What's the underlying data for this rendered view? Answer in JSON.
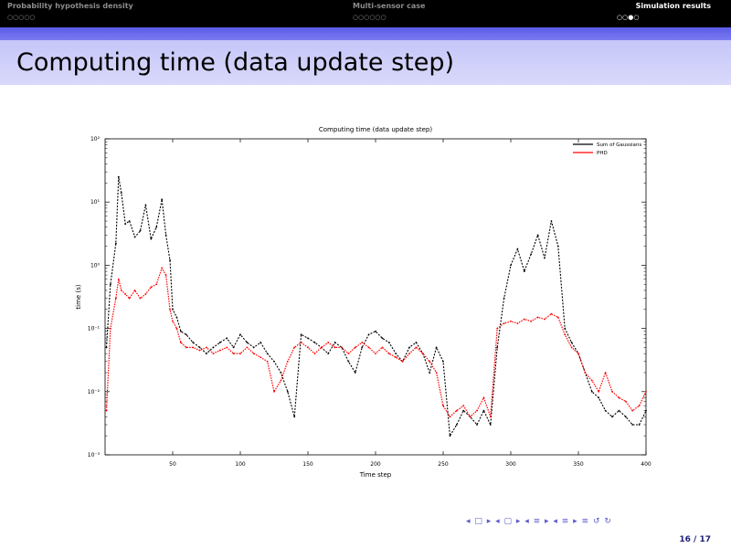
{
  "header": {
    "sections": [
      {
        "title": "Probability hypothesis density",
        "dots": "○○○○○",
        "active": false
      },
      {
        "title": "Multi-sensor case",
        "dots": "○○○○○○",
        "active": false
      },
      {
        "title": "Simulation results",
        "dots": "○○●○",
        "active": true
      }
    ]
  },
  "frame": {
    "title": "Computing time (data update step)"
  },
  "footer": {
    "nav_symbols": "◂ □ ▸ ◂ ▢ ▸ ◂ ≡ ▸ ◂ ≡ ▸   ≡   ↺ ↻",
    "page": "16 / 17"
  },
  "chart_data": {
    "type": "line",
    "title": "Computing time (data update step)",
    "xlabel": "Time step",
    "ylabel": "time (s)",
    "xlim": [
      0,
      400
    ],
    "yscale": "log",
    "ylim": [
      0.001,
      100
    ],
    "x_ticks": [
      "50",
      "100",
      "150",
      "200",
      "250",
      "300",
      "350",
      "400"
    ],
    "y_ticks": [
      "10⁻³",
      "10⁻²",
      "10⁻¹",
      "10⁰",
      "10¹",
      "10²"
    ],
    "legend_position": "top-right",
    "colors": {
      "series1": "#000000",
      "series2": "#ff0000"
    },
    "series": [
      {
        "name": "Sum of Gaussians",
        "x": [
          1,
          4,
          8,
          10,
          12,
          15,
          18,
          22,
          26,
          30,
          34,
          38,
          42,
          45,
          48,
          50,
          53,
          56,
          60,
          65,
          70,
          75,
          80,
          85,
          90,
          95,
          100,
          105,
          110,
          115,
          120,
          125,
          130,
          135,
          140,
          145,
          150,
          155,
          160,
          165,
          170,
          175,
          180,
          185,
          190,
          195,
          200,
          205,
          210,
          215,
          220,
          225,
          230,
          235,
          240,
          245,
          250,
          255,
          260,
          265,
          270,
          275,
          280,
          285,
          290,
          295,
          300,
          305,
          310,
          315,
          320,
          325,
          330,
          335,
          340,
          345,
          350,
          355,
          360,
          365,
          370,
          375,
          380,
          385,
          390,
          395,
          400
        ],
        "values": [
          0.05,
          0.5,
          2.2,
          25,
          14,
          4.5,
          5,
          2.8,
          3.5,
          9,
          2.6,
          4,
          11,
          3,
          1.2,
          0.2,
          0.15,
          0.09,
          0.08,
          0.06,
          0.05,
          0.04,
          0.05,
          0.06,
          0.07,
          0.05,
          0.08,
          0.06,
          0.05,
          0.06,
          0.04,
          0.03,
          0.02,
          0.01,
          0.004,
          0.08,
          0.07,
          0.06,
          0.05,
          0.04,
          0.06,
          0.05,
          0.03,
          0.02,
          0.05,
          0.08,
          0.09,
          0.07,
          0.06,
          0.04,
          0.03,
          0.05,
          0.06,
          0.04,
          0.02,
          0.05,
          0.03,
          0.002,
          0.003,
          0.005,
          0.004,
          0.003,
          0.005,
          0.003,
          0.05,
          0.3,
          1,
          1.8,
          0.8,
          1.5,
          3,
          1.3,
          5,
          2,
          0.1,
          0.06,
          0.04,
          0.02,
          0.01,
          0.008,
          0.005,
          0.004,
          0.005,
          0.004,
          0.003,
          0.003,
          0.005
        ]
      },
      {
        "name": "PHD",
        "x": [
          1,
          4,
          8,
          10,
          12,
          15,
          18,
          22,
          26,
          30,
          34,
          38,
          42,
          45,
          48,
          50,
          53,
          56,
          60,
          65,
          70,
          75,
          80,
          85,
          90,
          95,
          100,
          105,
          110,
          115,
          120,
          125,
          130,
          135,
          140,
          145,
          150,
          155,
          160,
          165,
          170,
          175,
          180,
          185,
          190,
          195,
          200,
          205,
          210,
          215,
          220,
          225,
          230,
          235,
          240,
          245,
          250,
          255,
          260,
          265,
          270,
          275,
          280,
          285,
          290,
          295,
          300,
          305,
          310,
          315,
          320,
          325,
          330,
          335,
          340,
          345,
          350,
          355,
          360,
          365,
          370,
          375,
          380,
          385,
          390,
          395,
          400
        ],
        "values": [
          0.005,
          0.1,
          0.3,
          0.6,
          0.4,
          0.35,
          0.3,
          0.4,
          0.3,
          0.35,
          0.45,
          0.5,
          0.9,
          0.7,
          0.2,
          0.13,
          0.1,
          0.06,
          0.05,
          0.05,
          0.045,
          0.05,
          0.04,
          0.045,
          0.05,
          0.04,
          0.04,
          0.05,
          0.04,
          0.035,
          0.03,
          0.01,
          0.015,
          0.03,
          0.05,
          0.06,
          0.05,
          0.04,
          0.05,
          0.06,
          0.05,
          0.05,
          0.04,
          0.05,
          0.06,
          0.05,
          0.04,
          0.05,
          0.04,
          0.035,
          0.03,
          0.04,
          0.05,
          0.04,
          0.03,
          0.02,
          0.006,
          0.004,
          0.005,
          0.006,
          0.004,
          0.005,
          0.008,
          0.004,
          0.1,
          0.12,
          0.13,
          0.12,
          0.14,
          0.13,
          0.15,
          0.14,
          0.17,
          0.15,
          0.08,
          0.05,
          0.04,
          0.02,
          0.015,
          0.01,
          0.02,
          0.01,
          0.008,
          0.007,
          0.005,
          0.006,
          0.01
        ]
      }
    ]
  }
}
